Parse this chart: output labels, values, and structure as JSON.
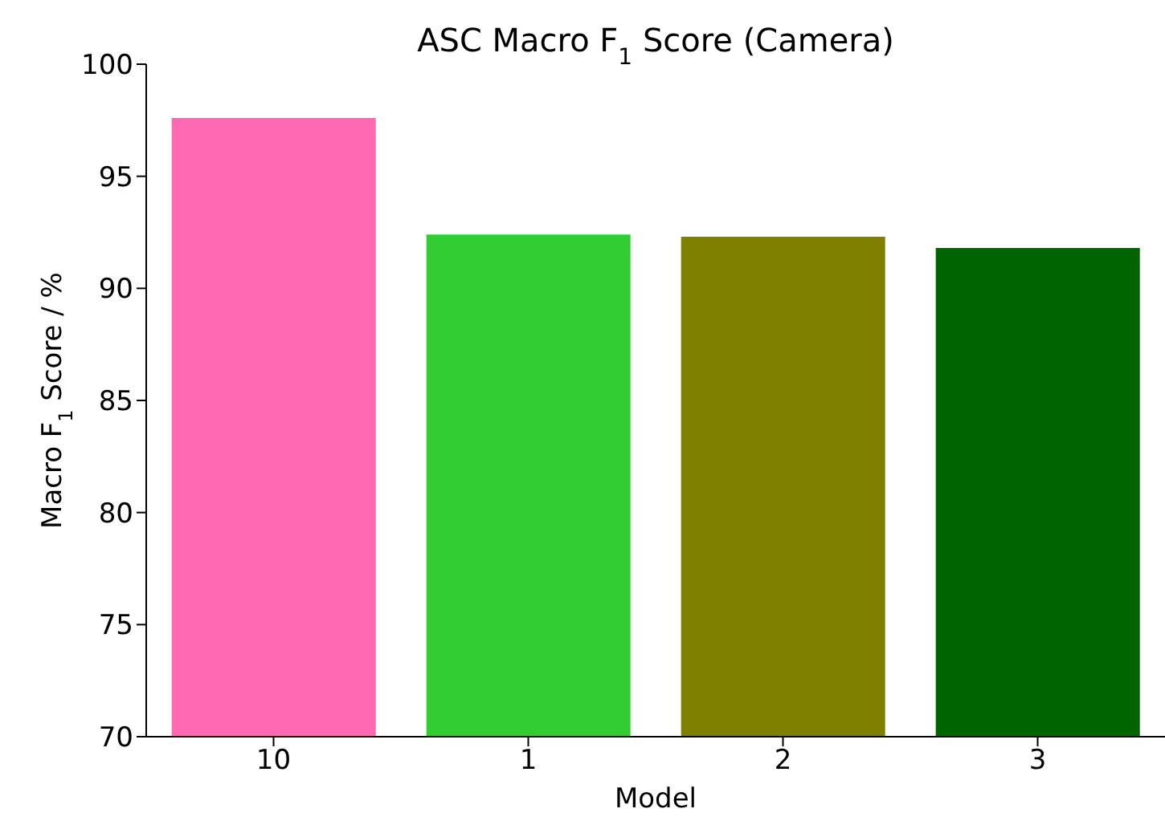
{
  "chart_data": {
    "type": "bar",
    "title": "ASC Macro F$_{1}$ Score (Camera)",
    "xlabel": "Model",
    "ylabel": "Macro F$_{1}$ Score / %",
    "categories": [
      "10",
      "1",
      "2",
      "3"
    ],
    "values": [
      97.6,
      92.4,
      92.3,
      91.8
    ],
    "colors": [
      "#ff69b4",
      "#32cd32",
      "#808000",
      "#006400"
    ],
    "ylim": [
      70,
      100
    ],
    "yticks": [
      70,
      75,
      80,
      85,
      90,
      95,
      100
    ],
    "grid": false
  }
}
